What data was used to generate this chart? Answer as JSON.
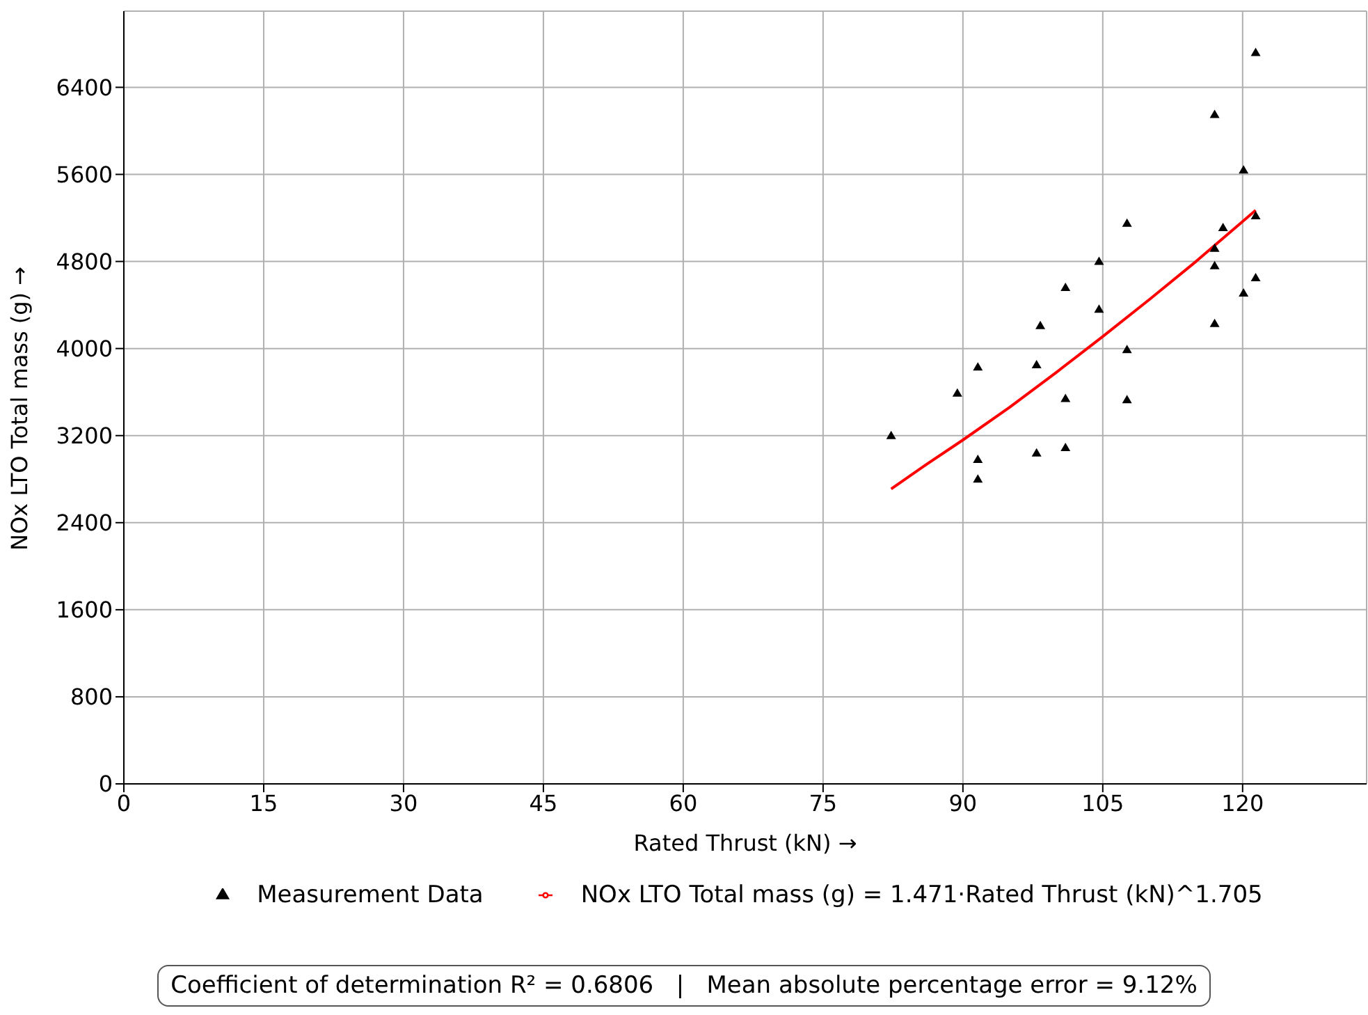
{
  "chart_data": {
    "type": "scatter",
    "xlabel": "Rated Thrust (kN) →",
    "ylabel": "NOx LTO Total mass (g) →",
    "xlim": [
      0,
      133.3
    ],
    "xticks": [
      0,
      15,
      30,
      45,
      60,
      75,
      90,
      105,
      120
    ],
    "ylim": [
      0,
      7100
    ],
    "yticks": [
      0,
      800,
      1600,
      2400,
      3200,
      4000,
      4800,
      5600,
      6400
    ],
    "grid": true,
    "legend": "bottom",
    "marker": "triangle",
    "annotations": [
      "Coefficient of determination R² = 0.6806   |   Mean absolute percentage error = 9.12%"
    ],
    "series": [
      {
        "name": "Measurement Data",
        "color": "#000000",
        "x": [
          82.3,
          89.4,
          91.6,
          91.6,
          91.6,
          97.9,
          97.9,
          98.3,
          101.0,
          101.0,
          101.0,
          104.6,
          104.6,
          107.6,
          107.6,
          107.6,
          117.0,
          117.0,
          117.0,
          117.0,
          117.9,
          120.1,
          120.1,
          121.4,
          121.4,
          121.4
        ],
        "values": [
          3200,
          3590,
          3830,
          2980,
          2800,
          3850,
          3040,
          4210,
          4560,
          3540,
          3090,
          4800,
          4360,
          5150,
          3990,
          3530,
          6150,
          4920,
          4760,
          4230,
          5110,
          5640,
          4510,
          6720,
          5220,
          4650
        ]
      },
      {
        "name": "NOx LTO Total mass (g) = 1.471·Rated Thrust (kN)^1.705",
        "type": "line",
        "marker": "none",
        "line_style": "solid",
        "color": "#ff0000",
        "x": [
          82.3,
          86,
          90,
          95,
          100,
          105,
          110,
          115,
          121.4
        ],
        "values": [
          2710,
          2930,
          3160,
          3460,
          3780,
          4110,
          4450,
          4800,
          5270
        ]
      }
    ]
  }
}
